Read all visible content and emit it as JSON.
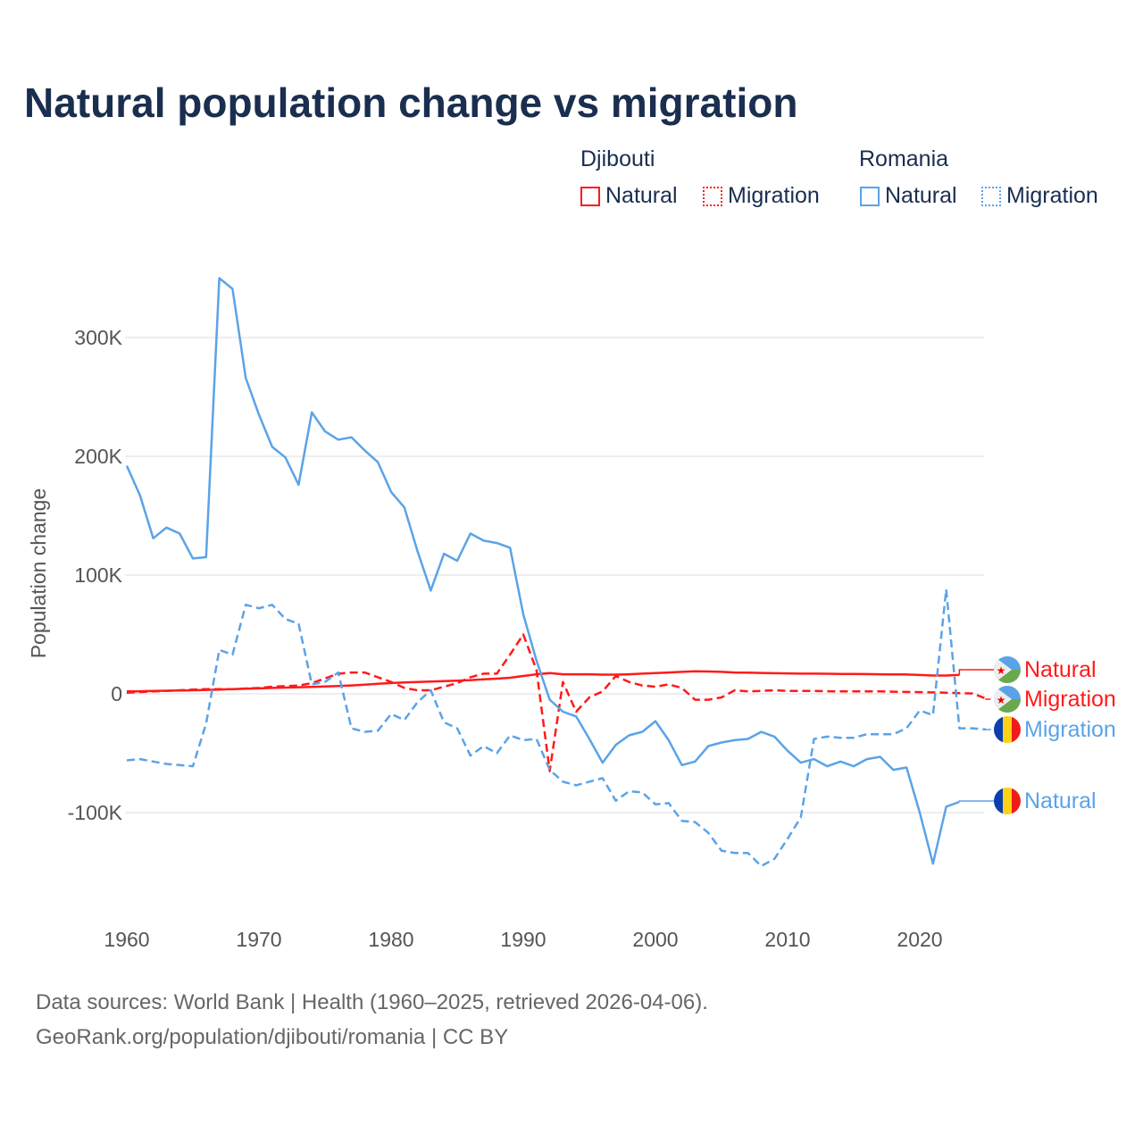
{
  "title": "Natural population change vs migration",
  "legend": {
    "groups": [
      {
        "name": "Djibouti",
        "items": [
          "Natural",
          "Migration"
        ]
      },
      {
        "name": "Romania",
        "items": [
          "Natural",
          "Migration"
        ]
      }
    ]
  },
  "footer": {
    "line1": "Data sources: World Bank | Health (1960–2025, retrieved 2026-04-06).",
    "line2": "GeoRank.org/population/djibouti/romania | CC BY"
  },
  "colors": {
    "djibouti": "#ff1a1a",
    "romania": "#5ba3e8",
    "title": "#1a2e4f",
    "grid": "#e8e8ee"
  },
  "chart_data": {
    "type": "line",
    "title": "Natural population change vs migration",
    "xlabel": "",
    "ylabel": "Population change",
    "xlim": [
      1960,
      2025
    ],
    "ylim": [
      -170000,
      360000
    ],
    "xticks": [
      1960,
      1970,
      1980,
      1990,
      2000,
      2010,
      2020
    ],
    "xtick_labels": [
      "1960",
      "1970",
      "1980",
      "1990",
      "2000",
      "2010",
      "2020"
    ],
    "yticks": [
      300000,
      200000,
      100000,
      0,
      -100000
    ],
    "ytick_labels": [
      "300K",
      "200K",
      "100K",
      "0",
      "-100K"
    ],
    "x_start": 1960,
    "series": [
      {
        "name": "Djibouti Natural",
        "country": "Djibouti",
        "kind": "Natural",
        "dash": false,
        "end_label": "Natural",
        "values": [
          2000,
          2200,
          2400,
          2600,
          2800,
          3000,
          3300,
          3600,
          4000,
          4300,
          4600,
          5000,
          5300,
          5600,
          5900,
          6200,
          6600,
          7100,
          7700,
          8400,
          9100,
          9600,
          10000,
          10300,
          10700,
          11100,
          11600,
          12200,
          12800,
          13500,
          15000,
          16500,
          17500,
          16500,
          16500,
          16500,
          16200,
          16200,
          16500,
          17000,
          17500,
          18000,
          18500,
          19000,
          18800,
          18500,
          18000,
          17800,
          17600,
          17400,
          17200,
          17000,
          17000,
          16900,
          16800,
          16700,
          16600,
          16500,
          16400,
          16300,
          15900,
          15400,
          15400,
          16000
        ]
      },
      {
        "name": "Djibouti Migration",
        "country": "Djibouti",
        "kind": "Migration",
        "dash": true,
        "end_label": "Migration",
        "values": [
          1000,
          1500,
          2000,
          2500,
          3000,
          3500,
          4000,
          4000,
          4000,
          4500,
          5000,
          6000,
          6500,
          7000,
          9000,
          13000,
          17000,
          18000,
          18000,
          14000,
          10000,
          5000,
          3000,
          3000,
          6000,
          9000,
          14000,
          17000,
          17000,
          33000,
          50000,
          20000,
          -65000,
          10000,
          -15000,
          -3000,
          2000,
          15000,
          10000,
          7000,
          6000,
          8000,
          5000,
          -5000,
          -5000,
          -3000,
          3000,
          2000,
          2500,
          3000,
          2500,
          2500,
          2500,
          2200,
          2000,
          2000,
          2000,
          2000,
          1800,
          1600,
          1400,
          1200,
          1000,
          600,
          300,
          -4000
        ]
      },
      {
        "name": "Romania Natural",
        "country": "Romania",
        "kind": "Natural",
        "dash": false,
        "end_label": "Natural",
        "values": [
          192000,
          167000,
          131000,
          140000,
          135000,
          114000,
          115000,
          350000,
          341000,
          266000,
          235000,
          208000,
          199000,
          176000,
          237000,
          221000,
          214000,
          216000,
          205000,
          195000,
          170000,
          157000,
          120000,
          87000,
          118000,
          112000,
          135000,
          129000,
          127000,
          123000,
          67000,
          28000,
          -5000,
          -15000,
          -19000,
          -38000,
          -58000,
          -43000,
          -35000,
          -32000,
          -23000,
          -39000,
          -60000,
          -57000,
          -44000,
          -41000,
          -39000,
          -38000,
          -32000,
          -36000,
          -48000,
          -58000,
          -55000,
          -61000,
          -57000,
          -61000,
          -55000,
          -53000,
          -64000,
          -62000,
          -100000,
          -143000,
          -95000,
          -91000
        ]
      },
      {
        "name": "Romania Migration",
        "country": "Romania",
        "kind": "Migration",
        "dash": true,
        "end_label": "Migration",
        "values": [
          -56000,
          -55000,
          -57000,
          -59000,
          -60000,
          -61000,
          -25000,
          37000,
          33000,
          75000,
          72000,
          75000,
          63000,
          59000,
          8000,
          10000,
          18000,
          -29000,
          -32000,
          -31000,
          -17000,
          -22000,
          -7000,
          3000,
          -24000,
          -29000,
          -52000,
          -44000,
          -50000,
          -35000,
          -39000,
          -38000,
          -64000,
          -74000,
          -77000,
          -74000,
          -71000,
          -90000,
          -82000,
          -83000,
          -93000,
          -92000,
          -107000,
          -108000,
          -117000,
          -132000,
          -134000,
          -134000,
          -145000,
          -139000,
          -122000,
          -104000,
          -38000,
          -36000,
          -37000,
          -37000,
          -34000,
          -34000,
          -34000,
          -29000,
          -14000,
          -18000,
          88000,
          -29000,
          -29000,
          -30000
        ]
      }
    ]
  }
}
